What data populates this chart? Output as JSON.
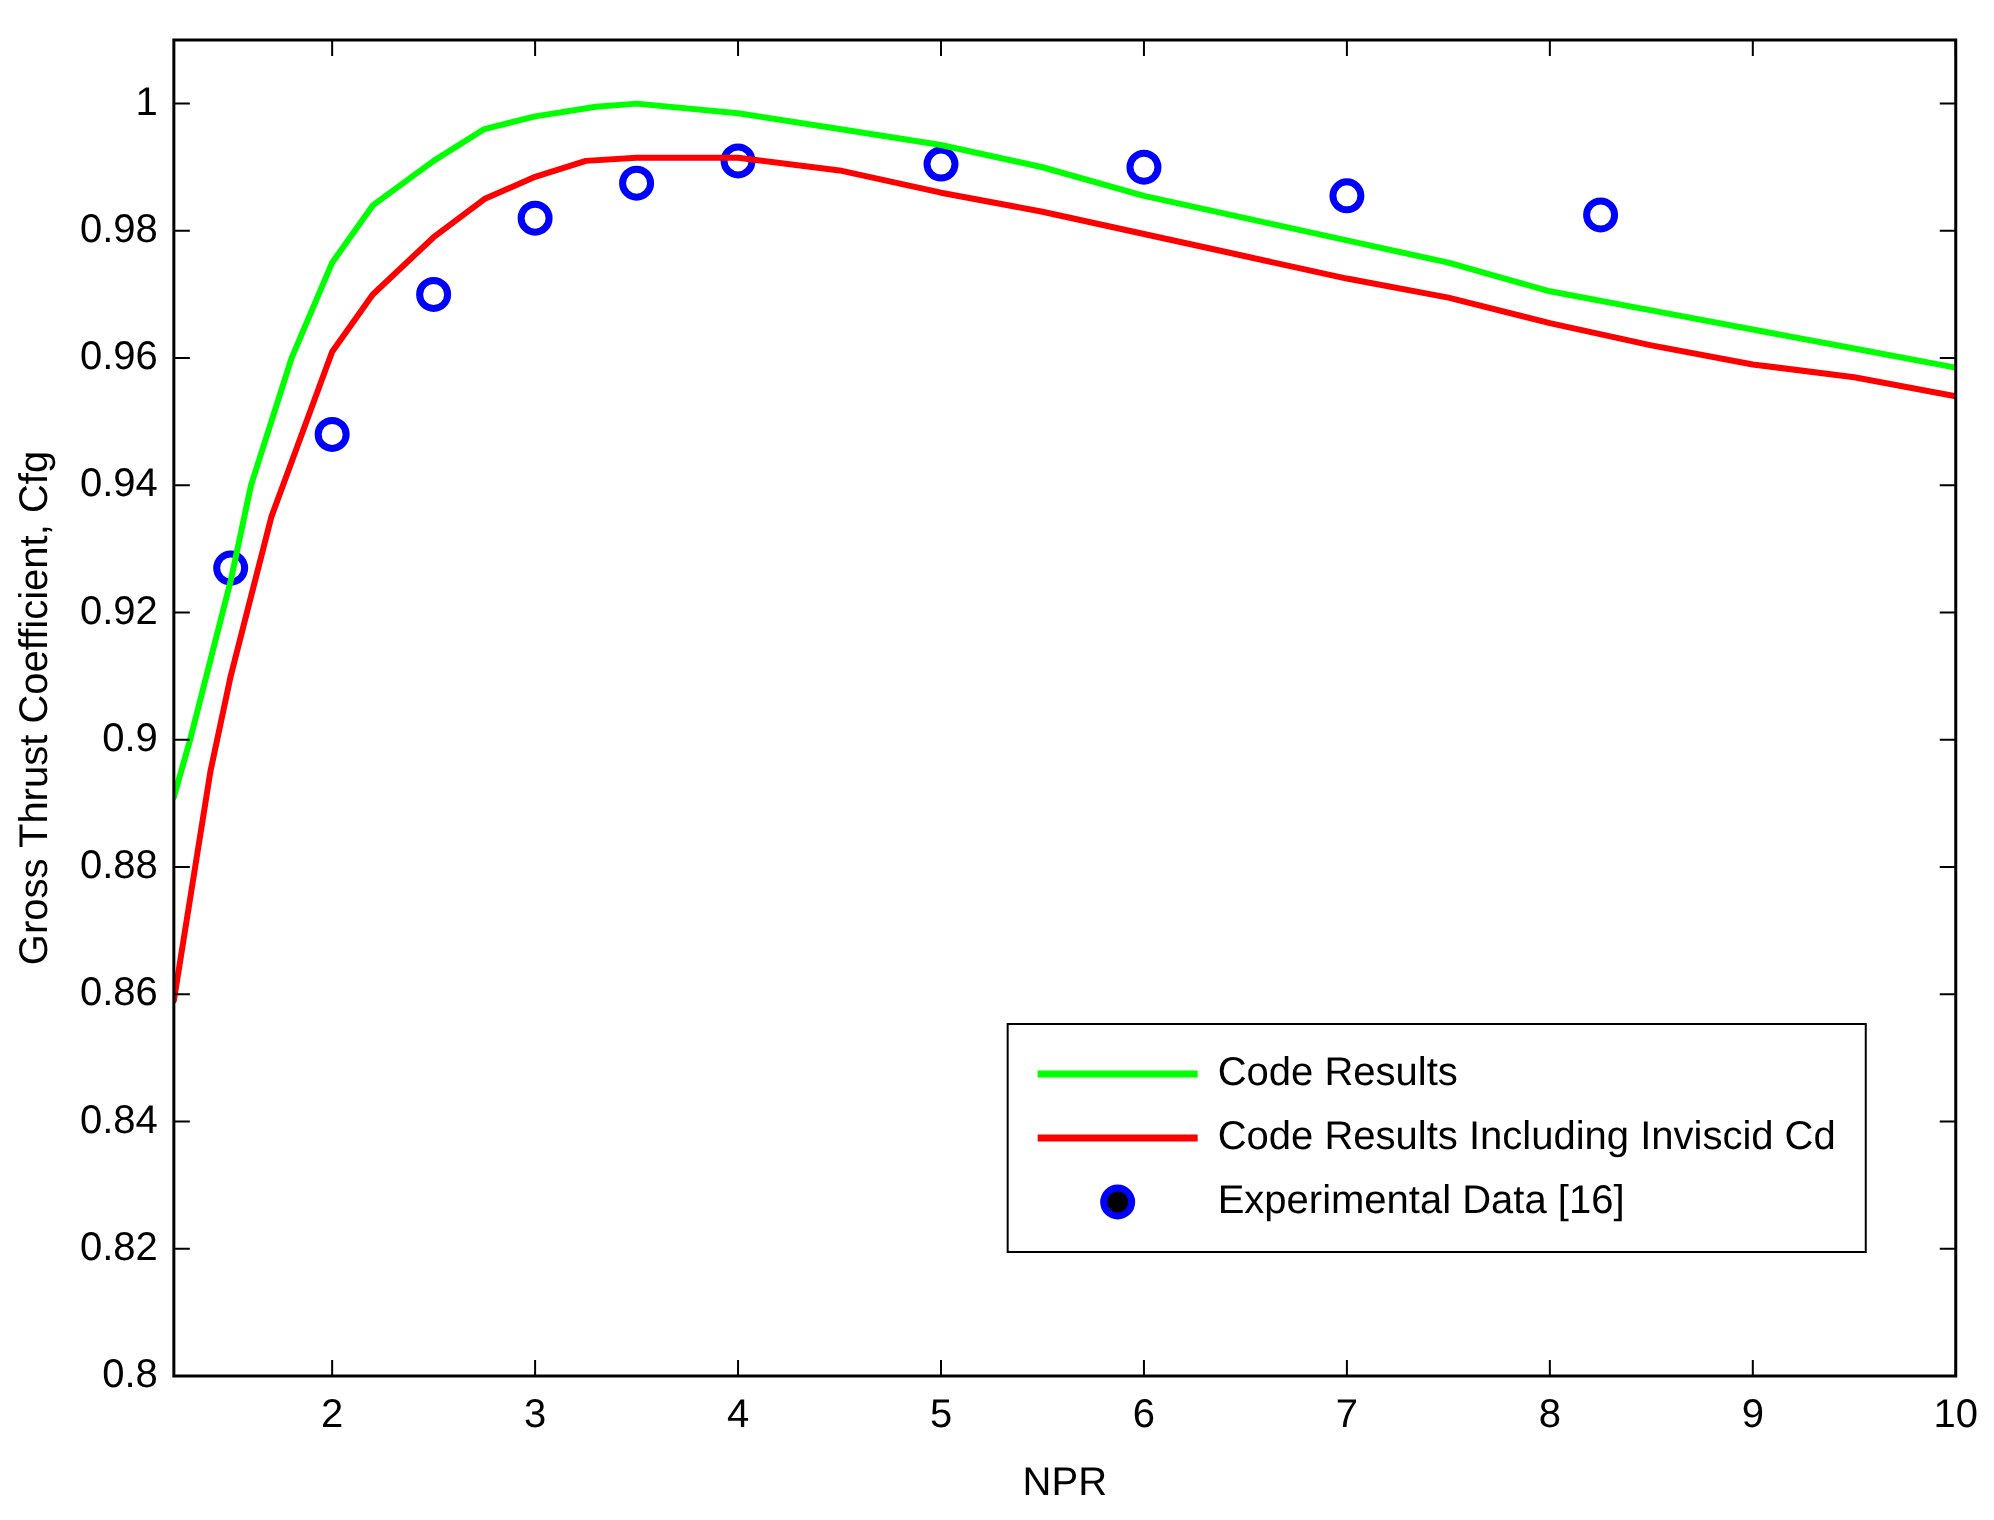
{
  "chart_data": {
    "type": "line",
    "xlabel": "NPR",
    "ylabel": "Gross Thrust Coefficient, Cfg",
    "xlim": [
      1.22,
      10
    ],
    "xticks": [
      2,
      3,
      4,
      5,
      6,
      7,
      8,
      9,
      10
    ],
    "ylim": [
      0.8,
      1.01
    ],
    "yticks": [
      0.8,
      0.82,
      0.84,
      0.86,
      0.88,
      0.9,
      0.92,
      0.94,
      0.96,
      0.98,
      1
    ],
    "grid": false,
    "legend": "bottom right",
    "marker": "none",
    "line_style": "solid",
    "series": [
      {
        "name": "Code Results",
        "color": "#00ff00",
        "x": [
          1.22,
          1.3,
          1.5,
          1.6,
          1.8,
          2.0,
          2.2,
          2.5,
          2.75,
          3.0,
          3.3,
          3.5,
          4.0,
          4.5,
          5,
          5.5,
          6,
          6.5,
          7,
          7.5,
          8,
          8.5,
          9,
          9.5,
          10
        ],
        "values": [
          0.891,
          0.9,
          0.925,
          0.94,
          0.96,
          0.975,
          0.984,
          0.991,
          0.996,
          0.998,
          0.9995,
          1.0,
          0.9985,
          0.996,
          0.9935,
          0.99,
          0.9855,
          0.982,
          0.9785,
          0.975,
          0.9705,
          0.9675,
          0.9645,
          0.9615,
          0.9585
        ]
      },
      {
        "name": "Code Results Including Inviscid Cd",
        "color": "#ff0000",
        "x": [
          1.22,
          1.3,
          1.4,
          1.5,
          1.7,
          2.0,
          2.2,
          2.5,
          2.75,
          3.0,
          3.25,
          3.5,
          4.0,
          4.5,
          5,
          5.5,
          6,
          6.5,
          7,
          7.5,
          8,
          8.5,
          9,
          9.5,
          10
        ],
        "values": [
          0.859,
          0.875,
          0.895,
          0.91,
          0.935,
          0.961,
          0.97,
          0.979,
          0.985,
          0.9885,
          0.991,
          0.9915,
          0.9915,
          0.9895,
          0.986,
          0.983,
          0.9795,
          0.976,
          0.9725,
          0.9695,
          0.9655,
          0.962,
          0.959,
          0.957,
          0.954
        ]
      },
      {
        "name": "Experimental Data [16]",
        "type": "scatter",
        "marker": "circle",
        "color": "#0000ff",
        "x": [
          1.5,
          2,
          2.5,
          3,
          3.5,
          4,
          5,
          6,
          7,
          8.25
        ],
        "values": [
          0.927,
          0.948,
          0.97,
          0.982,
          0.9875,
          0.991,
          0.9905,
          0.99,
          0.9855,
          0.9825
        ]
      }
    ]
  }
}
